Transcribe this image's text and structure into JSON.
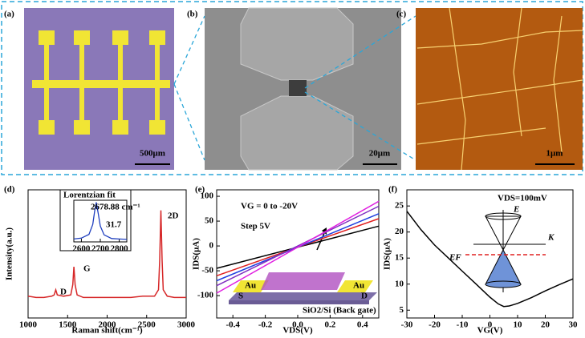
{
  "panels": [
    {
      "label": "(a)",
      "scale_bar": "500μm"
    },
    {
      "label": "(b)",
      "scale_bar": "20μm"
    },
    {
      "label": "(c)",
      "scale_bar": "1μm"
    }
  ],
  "chart_data": [
    {
      "type": "line",
      "panel_label": "(d)",
      "xlabel": "Raman shift(cm⁻¹)",
      "ylabel": "Intensity(a.u.)",
      "xlim": [
        1000,
        3000
      ],
      "xticks": [
        1000,
        1500,
        2000,
        2500,
        3000
      ],
      "ylim": [
        0,
        100
      ],
      "x": [
        1000,
        1100,
        1200,
        1300,
        1330,
        1350,
        1370,
        1450,
        1540,
        1565,
        1580,
        1595,
        1620,
        1700,
        1900,
        2100,
        2300,
        2450,
        2600,
        2650,
        2665,
        2680,
        2695,
        2710,
        2760,
        2850,
        3000
      ],
      "series": [
        {
          "color": "#d62728",
          "values": [
            17,
            16,
            16,
            17,
            18,
            22,
            18,
            17,
            18,
            26,
            40,
            26,
            18,
            16,
            16,
            16,
            16,
            17,
            17,
            22,
            45,
            84,
            45,
            22,
            17,
            16,
            16
          ]
        }
      ],
      "annotations": [
        "D",
        "G",
        "2D"
      ],
      "inset": {
        "title": "Lorentzian fit",
        "xlim": [
          2560,
          2840
        ],
        "xticks": [
          2600,
          2700,
          2800
        ],
        "ylim": [
          0,
          100
        ],
        "x": [
          2560,
          2600,
          2640,
          2660,
          2670,
          2679,
          2690,
          2700,
          2720,
          2760,
          2800,
          2840
        ],
        "series": [
          {
            "color": "#1f3fbf",
            "values": [
              7,
              9,
              18,
              42,
              73,
              95,
              66,
              38,
              17,
              8,
              7,
              6
            ]
          }
        ],
        "annotations": [
          "2678.88 cm⁻¹",
          "31.7"
        ]
      }
    },
    {
      "type": "line",
      "panel_label": "(e)",
      "xlabel": "VDS(V)",
      "ylabel": "IDS(μA)",
      "xlim": [
        -0.5,
        0.5
      ],
      "xticks": [
        -0.4,
        -0.2,
        {
          "value": 0,
          "label": "0.0"
        },
        0.2,
        0.4
      ],
      "ylim": [
        -145,
        113
      ],
      "yticks": [
        -100,
        -50,
        0,
        50,
        100
      ],
      "x": [
        -0.5,
        0.5
      ],
      "series": [
        {
          "color": "#000000",
          "values": [
            -45,
            40
          ]
        },
        {
          "color": "#e02020",
          "values": [
            -60,
            55
          ]
        },
        {
          "color": "#2040e0",
          "values": [
            -70,
            65
          ]
        },
        {
          "color": "#8030c0",
          "values": [
            -80,
            80
          ]
        },
        {
          "color": "#e020e0",
          "values": [
            -95,
            90
          ]
        }
      ],
      "annotations": [
        "VG = 0 to -20V",
        "Step 5V",
        "Au",
        "Au",
        "S",
        "D",
        "SiO2/Si (Back gate)"
      ]
    },
    {
      "type": "line",
      "panel_label": "(f)",
      "xlabel": "VG(V)",
      "ylabel": "IDS(μA)",
      "xlim": [
        -30,
        30
      ],
      "xticks": [
        -30,
        -20,
        -10,
        0,
        10,
        20,
        30
      ],
      "ylim": [
        3.5,
        28.1
      ],
      "yticks": [
        5,
        10,
        15,
        20,
        25
      ],
      "x": [
        -30,
        -25,
        -20,
        -15,
        -10,
        -5,
        0,
        3,
        5,
        7,
        10,
        15,
        20,
        25,
        30
      ],
      "series": [
        {
          "color": "#000000",
          "values": [
            24,
            20.5,
            17.5,
            15,
            12.5,
            10,
            7.5,
            6.2,
            5.7,
            5.8,
            6.3,
            7.4,
            8.7,
            9.9,
            11
          ]
        }
      ],
      "annotations": [
        "VDS=100mV",
        "E",
        "K",
        "EF"
      ]
    }
  ]
}
